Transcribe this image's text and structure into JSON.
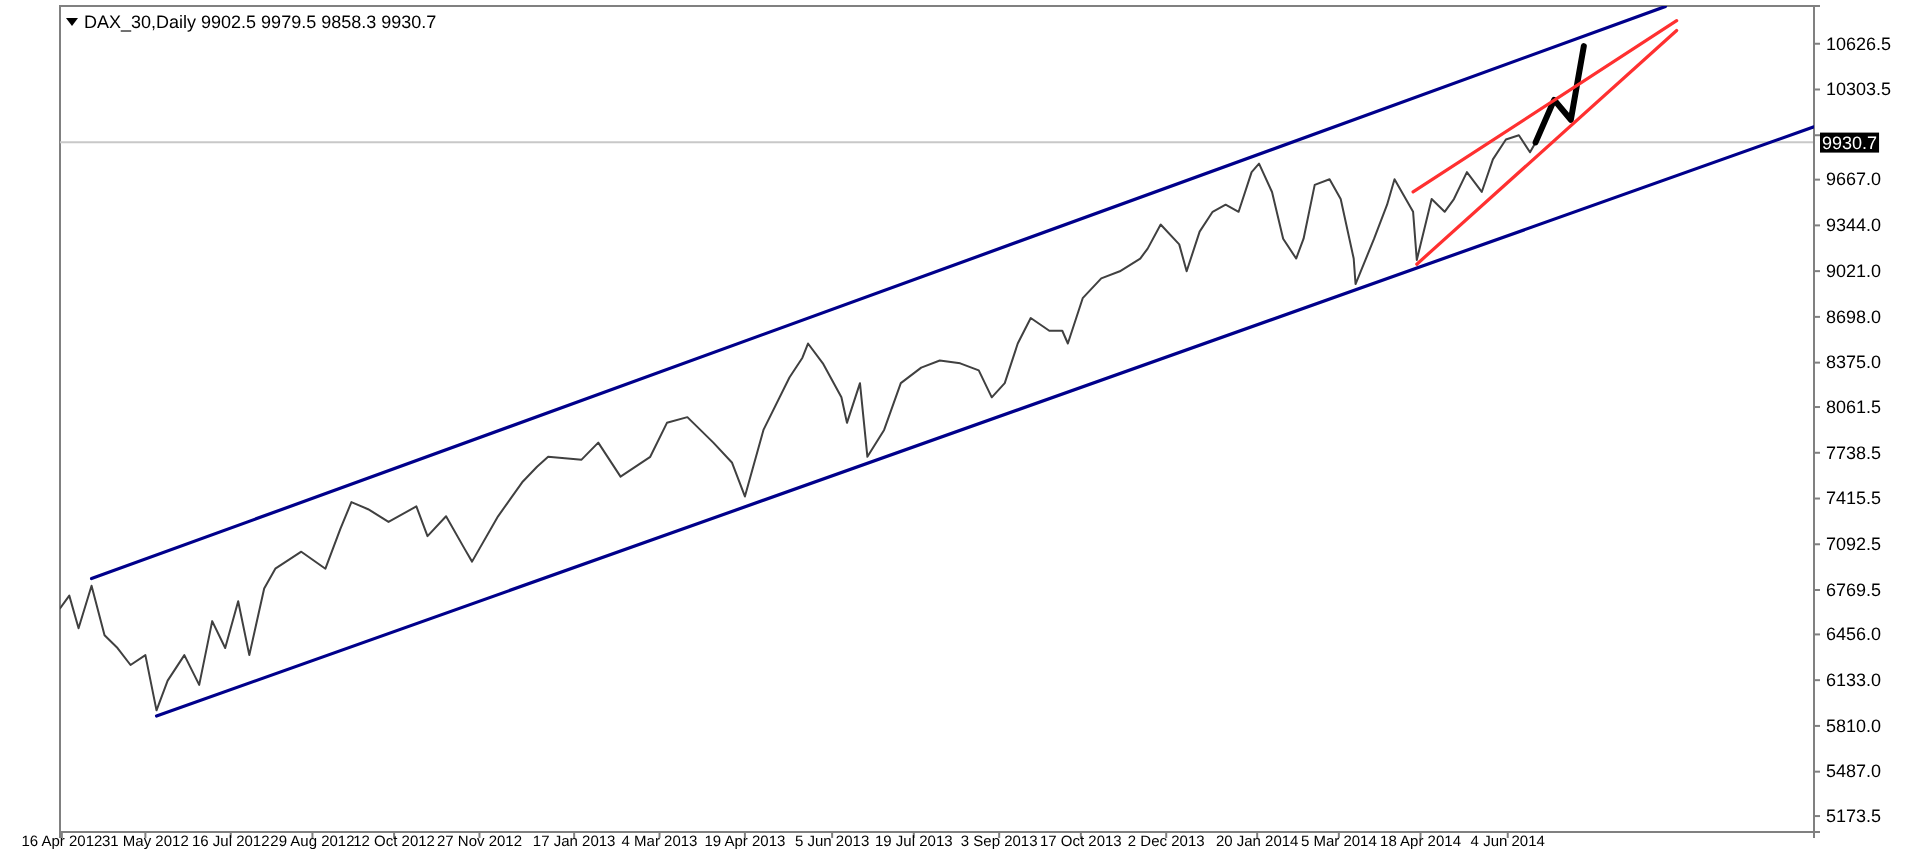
{
  "chart_data": {
    "type": "line",
    "title": "DAX_30,Daily  9902.5 9979.5 9858.3 9930.7",
    "xlim": [
      "2012-04-15",
      "2014-11-16"
    ],
    "ylim": [
      5061,
      10893
    ],
    "xticks": [
      {
        "value": "2012-04-16",
        "label": "16 Apr 2012"
      },
      {
        "value": "2012-05-31",
        "label": "31 May 2012"
      },
      {
        "value": "2012-07-16",
        "label": "16 Jul 2012"
      },
      {
        "value": "2012-08-29",
        "label": "29 Aug 2012"
      },
      {
        "value": "2012-10-12",
        "label": "12 Oct 2012"
      },
      {
        "value": "2012-11-27",
        "label": "27 Nov 2012"
      },
      {
        "value": "2013-01-17",
        "label": "17 Jan 2013"
      },
      {
        "value": "2013-03-04",
        "label": "4 Mar 2013"
      },
      {
        "value": "2013-04-19",
        "label": "19 Apr 2013"
      },
      {
        "value": "2013-06-05",
        "label": "5 Jun 2013"
      },
      {
        "value": "2013-07-19",
        "label": "19 Jul 2013"
      },
      {
        "value": "2013-09-03",
        "label": "3 Sep 2013"
      },
      {
        "value": "2013-10-17",
        "label": "17 Oct 2013"
      },
      {
        "value": "2013-12-02",
        "label": "2 Dec 2013"
      },
      {
        "value": "2014-01-20",
        "label": "20 Jan 2014"
      },
      {
        "value": "2014-03-05",
        "label": "5 Mar 2014"
      },
      {
        "value": "2014-04-18",
        "label": "18 Apr 2014"
      },
      {
        "value": "2014-06-04",
        "label": "4 Jun 2014"
      }
    ],
    "yticks": [
      {
        "value": 5173.5,
        "label": "5173.5"
      },
      {
        "value": 5487,
        "label": "5487.0"
      },
      {
        "value": 5810,
        "label": "5810.0"
      },
      {
        "value": 6133,
        "label": "6133.0"
      },
      {
        "value": 6456,
        "label": "6456.0"
      },
      {
        "value": 6769.5,
        "label": "6769.5"
      },
      {
        "value": 7092.5,
        "label": "7092.5"
      },
      {
        "value": 7415.5,
        "label": "7415.5"
      },
      {
        "value": 7738.5,
        "label": "7738.5"
      },
      {
        "value": 8061.5,
        "label": "8061.5"
      },
      {
        "value": 8375,
        "label": "8375.0"
      },
      {
        "value": 8698,
        "label": "8698.0"
      },
      {
        "value": 9021,
        "label": "9021.0"
      },
      {
        "value": 9344,
        "label": "9344.0"
      },
      {
        "value": 9667,
        "label": "9667.0"
      },
      {
        "value": 9980.5,
        "label": null
      },
      {
        "value": 10303.5,
        "label": "10303.5"
      },
      {
        "value": 10626.5,
        "label": "10626.5"
      }
    ],
    "ref_lines": [
      {
        "axis": "y",
        "value": 9930.7,
        "label": "9930.7",
        "color": "#c8c8c8"
      }
    ],
    "grid": false,
    "marker": "none",
    "series": [
      {
        "color": "#404040",
        "x": [
          "2012-04-15",
          "2012-04-20",
          "2012-04-25",
          "2012-05-02",
          "2012-05-09",
          "2012-05-16",
          "2012-05-23",
          "2012-05-31",
          "2012-06-06",
          "2012-06-12",
          "2012-06-21",
          "2012-06-29",
          "2012-07-06",
          "2012-07-13",
          "2012-07-20",
          "2012-07-26",
          "2012-08-03",
          "2012-08-09",
          "2012-08-23",
          "2012-09-05",
          "2012-09-13",
          "2012-09-19",
          "2012-09-28",
          "2012-10-09",
          "2012-10-24",
          "2012-10-30",
          "2012-11-09",
          "2012-11-19",
          "2012-11-23",
          "2012-12-07",
          "2012-12-20",
          "2012-12-28",
          "2013-01-03",
          "2013-01-21",
          "2013-01-30",
          "2013-02-11",
          "2013-02-27",
          "2013-03-08",
          "2013-03-19",
          "2013-04-02",
          "2013-04-12",
          "2013-04-19",
          "2013-04-29",
          "2013-05-13",
          "2013-05-20",
          "2013-05-23",
          "2013-05-31",
          "2013-06-10",
          "2013-06-13",
          "2013-06-20",
          "2013-06-24",
          "2013-07-03",
          "2013-07-12",
          "2013-07-23",
          "2013-08-02",
          "2013-08-13",
          "2013-08-23",
          "2013-08-30",
          "2013-09-06",
          "2013-09-13",
          "2013-09-20",
          "2013-09-30",
          "2013-10-07",
          "2013-10-10",
          "2013-10-18",
          "2013-10-28",
          "2013-11-07",
          "2013-11-18",
          "2013-11-22",
          "2013-11-29",
          "2013-12-09",
          "2013-12-13",
          "2013-12-20",
          "2013-12-27",
          "2014-01-03",
          "2014-01-10",
          "2014-01-17",
          "2014-01-21",
          "2014-01-28",
          "2014-02-03",
          "2014-02-10",
          "2014-02-14",
          "2014-02-20",
          "2014-02-28",
          "2014-03-06",
          "2014-03-13",
          "2014-03-14",
          "2014-03-24",
          "2014-03-31",
          "2014-04-04",
          "2014-04-14",
          "2014-04-16",
          "2014-04-24",
          "2014-05-01",
          "2014-05-06",
          "2014-05-13",
          "2014-05-21",
          "2014-05-27",
          "2014-06-03",
          "2014-06-10",
          "2014-06-16",
          "2014-06-19"
        ],
        "values": [
          6640,
          6730,
          6500,
          6800,
          6450,
          6360,
          6240,
          6310,
          5920,
          6130,
          6310,
          6100,
          6550,
          6360,
          6690,
          6310,
          6780,
          6920,
          7040,
          6920,
          7200,
          7390,
          7340,
          7250,
          7360,
          7150,
          7290,
          7060,
          6970,
          7290,
          7530,
          7640,
          7710,
          7690,
          7810,
          7570,
          7710,
          7950,
          7990,
          7810,
          7670,
          7430,
          7900,
          8270,
          8410,
          8510,
          8370,
          8130,
          7950,
          8230,
          7710,
          7900,
          8230,
          8340,
          8390,
          8370,
          8320,
          8130,
          8230,
          8510,
          8690,
          8600,
          8600,
          8510,
          8830,
          8970,
          9020,
          9110,
          9180,
          9350,
          9210,
          9020,
          9300,
          9440,
          9490,
          9440,
          9720,
          9780,
          9580,
          9250,
          9110,
          9250,
          9630,
          9670,
          9530,
          9110,
          8930,
          9250,
          9490,
          9670,
          9440,
          9100,
          9530,
          9440,
          9530,
          9720,
          9580,
          9810,
          9950,
          9980,
          9860,
          9930
        ]
      },
      {
        "color": "#000000",
        "x": [
          "2014-06-19",
          "2014-06-29",
          "2014-07-08",
          "2014-07-15"
        ],
        "values": [
          9930,
          10230,
          10090,
          10610
        ]
      },
      {
        "color": "#00008b",
        "x": [
          "2012-05-02",
          "2014-08-28"
        ],
        "values": [
          6850,
          10890
        ]
      },
      {
        "color": "#00008b",
        "x": [
          "2012-06-06",
          "2014-11-16"
        ],
        "values": [
          5880,
          10040
        ]
      },
      {
        "color": "#ff3030",
        "x": [
          "2014-04-14",
          "2014-09-03"
        ],
        "values": [
          9580,
          10790
        ]
      },
      {
        "color": "#ff3030",
        "x": [
          "2014-04-16",
          "2014-09-03"
        ],
        "values": [
          9070,
          10720
        ]
      }
    ]
  }
}
